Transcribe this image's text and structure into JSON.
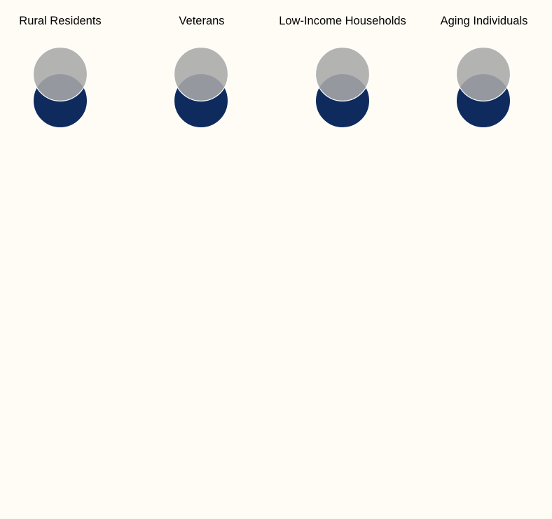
{
  "groups": [
    {
      "label": "Rural Residents"
    },
    {
      "label": "Veterans"
    },
    {
      "label": "Low-Income Households"
    },
    {
      "label": "Aging Individuals"
    }
  ],
  "colors": {
    "background": "#fffcf5",
    "bottom_circle": "#0f2b5e",
    "top_circle": "#a9a9a9",
    "circle_outline": "#ffffff"
  }
}
